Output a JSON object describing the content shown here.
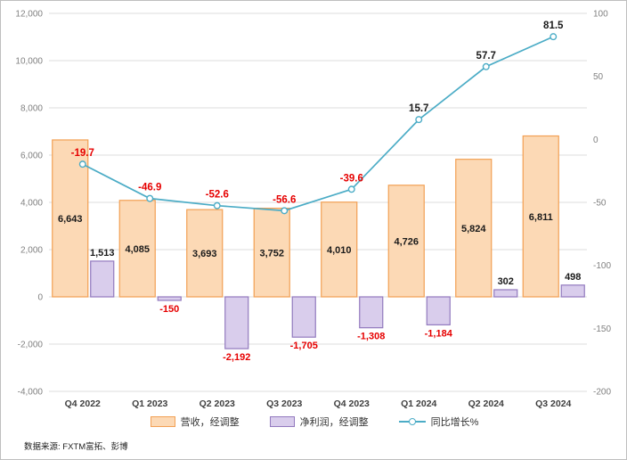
{
  "chart_data": {
    "type": "combo",
    "title": "",
    "categories": [
      "Q4 2022",
      "Q1 2023",
      "Q2 2023",
      "Q3 2023",
      "Q4 2023",
      "Q1 2024",
      "Q2 2024",
      "Q3 2024"
    ],
    "series": [
      {
        "name": "营收，经调整",
        "type": "bar",
        "axis": "left",
        "values": [
          6643,
          4085,
          3693,
          3752,
          4010,
          4726,
          5824,
          6811
        ],
        "fill": "#FCD9B5",
        "stroke": "#F2A054"
      },
      {
        "name": "净利润，经调整",
        "type": "bar",
        "axis": "left",
        "values": [
          1513,
          -150,
          -2192,
          -1705,
          -1308,
          -1184,
          302,
          498
        ],
        "fill": "#D9CDEC",
        "stroke": "#9279BE"
      },
      {
        "name": "同比增长%",
        "type": "line",
        "axis": "right",
        "values": [
          -19.7,
          -46.9,
          -52.6,
          -56.6,
          -39.6,
          15.7,
          57.7,
          81.5
        ],
        "color": "#4BACC6"
      }
    ],
    "left_axis": {
      "min": -4000,
      "max": 12000,
      "step": 2000
    },
    "right_axis": {
      "min": -200,
      "max": 100,
      "step": 50
    },
    "grid": true,
    "legend_position": "bottom",
    "negative_label_color": "#E60000",
    "source_note": "数据来源: FXTM富拓、彭博"
  }
}
